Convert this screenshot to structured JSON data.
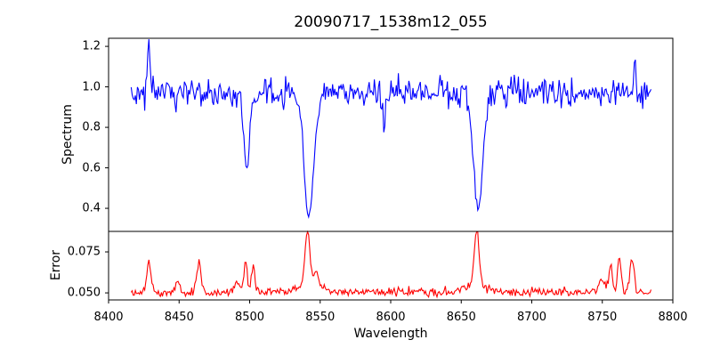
{
  "figure": {
    "background": "#ffffff",
    "frame_color": "#000000",
    "text_color": "#000000"
  },
  "chart_data": {
    "type": "line",
    "title": "20090717_1538m12_055",
    "xlabel": "Wavelength",
    "grid": false,
    "legend": null,
    "xlim": [
      8400,
      8800
    ],
    "xticks": [
      8400,
      8450,
      8500,
      8550,
      8600,
      8650,
      8700,
      8750,
      8800
    ],
    "x_data_range": [
      8416,
      8785
    ],
    "sample_step": 0.74,
    "noise_seed": 20090717,
    "panels": [
      {
        "name": "spectrum",
        "ylabel": "Spectrum",
        "line_color": "#0000ff",
        "ylim": [
          0.286,
          1.24
        ],
        "yticks": [
          0.4,
          0.6,
          0.8,
          1.0,
          1.2
        ],
        "ytick_labels": [
          "0.4",
          "0.6",
          "0.8",
          "1.0",
          "1.2"
        ],
        "continuum": 0.968,
        "noise_sigma": 0.034,
        "absorption_lines": [
          {
            "center": 8498,
            "floor": 0.58,
            "depth": 0.4,
            "sigma": 2.0
          },
          {
            "center": 8542,
            "floor": 0.37,
            "depth": 0.617,
            "sigma": 3.5
          },
          {
            "center": 8595,
            "floor": 0.8,
            "depth": 0.17,
            "sigma": 0.8
          },
          {
            "center": 8662,
            "floor": 0.39,
            "depth": 0.597,
            "sigma": 3.2
          }
        ],
        "emission_spikes": [
          {
            "center": 8428.5,
            "peak": 1.21,
            "amplitude": 0.25,
            "sigma": 0.8
          },
          {
            "center": 8635,
            "peak": 1.1,
            "amplitude": 0.11,
            "sigma": 0.8
          },
          {
            "center": 8773,
            "peak": 1.13,
            "amplitude": 0.17,
            "sigma": 0.9
          }
        ]
      },
      {
        "name": "error",
        "ylabel": "Error",
        "line_color": "#ff0000",
        "ylim": [
          0.0457,
          0.0875
        ],
        "yticks": [
          0.05,
          0.075
        ],
        "ytick_labels": [
          "0.050",
          "0.075"
        ],
        "baseline": 0.0505,
        "noise_sigma": 0.0013,
        "peaks": [
          {
            "center": 8428.5,
            "top": 0.07,
            "amplitude": 0.019,
            "sigma": 1.5
          },
          {
            "center": 8449,
            "top": 0.057,
            "amplitude": 0.006,
            "sigma": 1.5
          },
          {
            "center": 8464,
            "top": 0.07,
            "amplitude": 0.019,
            "sigma": 1.5
          },
          {
            "center": 8491,
            "top": 0.058,
            "amplitude": 0.007,
            "sigma": 1.5
          },
          {
            "center": 8497,
            "top": 0.07,
            "amplitude": 0.019,
            "sigma": 1.2
          },
          {
            "center": 8502.5,
            "top": 0.067,
            "amplitude": 0.016,
            "sigma": 1.2
          },
          {
            "center": 8541,
            "top": 0.085,
            "amplitude": 0.034,
            "sigma": 1.6
          },
          {
            "center": 8541,
            "top": 0.056,
            "amplitude": 0.005,
            "sigma": 7.0
          },
          {
            "center": 8547,
            "top": 0.063,
            "amplitude": 0.009,
            "sigma": 2.0
          },
          {
            "center": 8661,
            "top": 0.085,
            "amplitude": 0.034,
            "sigma": 1.6
          },
          {
            "center": 8661,
            "top": 0.056,
            "amplitude": 0.005,
            "sigma": 7.0
          },
          {
            "center": 8750,
            "top": 0.06,
            "amplitude": 0.008,
            "sigma": 2.0
          },
          {
            "center": 8756,
            "top": 0.068,
            "amplitude": 0.017,
            "sigma": 1.2
          },
          {
            "center": 8762,
            "top": 0.072,
            "amplitude": 0.021,
            "sigma": 1.2
          },
          {
            "center": 8771,
            "top": 0.071,
            "amplitude": 0.02,
            "sigma": 1.5
          }
        ]
      }
    ]
  }
}
